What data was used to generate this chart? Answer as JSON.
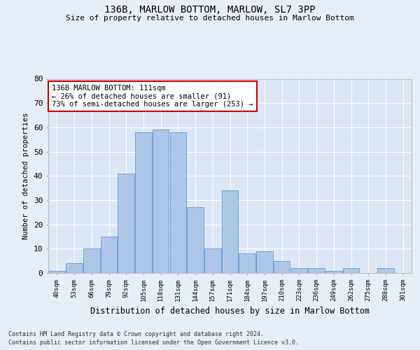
{
  "title": "136B, MARLOW BOTTOM, MARLOW, SL7 3PP",
  "subtitle": "Size of property relative to detached houses in Marlow Bottom",
  "xlabel": "Distribution of detached houses by size in Marlow Bottom",
  "ylabel": "Number of detached properties",
  "categories": [
    "40sqm",
    "53sqm",
    "66sqm",
    "79sqm",
    "92sqm",
    "105sqm",
    "118sqm",
    "131sqm",
    "144sqm",
    "157sqm",
    "171sqm",
    "184sqm",
    "197sqm",
    "210sqm",
    "223sqm",
    "236sqm",
    "249sqm",
    "262sqm",
    "275sqm",
    "288sqm",
    "301sqm"
  ],
  "values": [
    1,
    4,
    10,
    15,
    41,
    58,
    59,
    58,
    27,
    10,
    34,
    8,
    9,
    5,
    2,
    2,
    1,
    2,
    0,
    2,
    0
  ],
  "bar_color": "#aec6e8",
  "bar_edge_color": "#6699cc",
  "annotation_text": "136B MARLOW BOTTOM: 111sqm\n← 26% of detached houses are smaller (91)\n73% of semi-detached houses are larger (253) →",
  "annotation_box_color": "#ffffff",
  "annotation_box_edge_color": "#cc0000",
  "ylim": [
    0,
    80
  ],
  "yticks": [
    0,
    10,
    20,
    30,
    40,
    50,
    60,
    70,
    80
  ],
  "bg_color": "#e8eef7",
  "axes_bg_color": "#dce6f4",
  "footer_line1": "Contains HM Land Registry data © Crown copyright and database right 2024.",
  "footer_line2": "Contains public sector information licensed under the Open Government Licence v3.0."
}
